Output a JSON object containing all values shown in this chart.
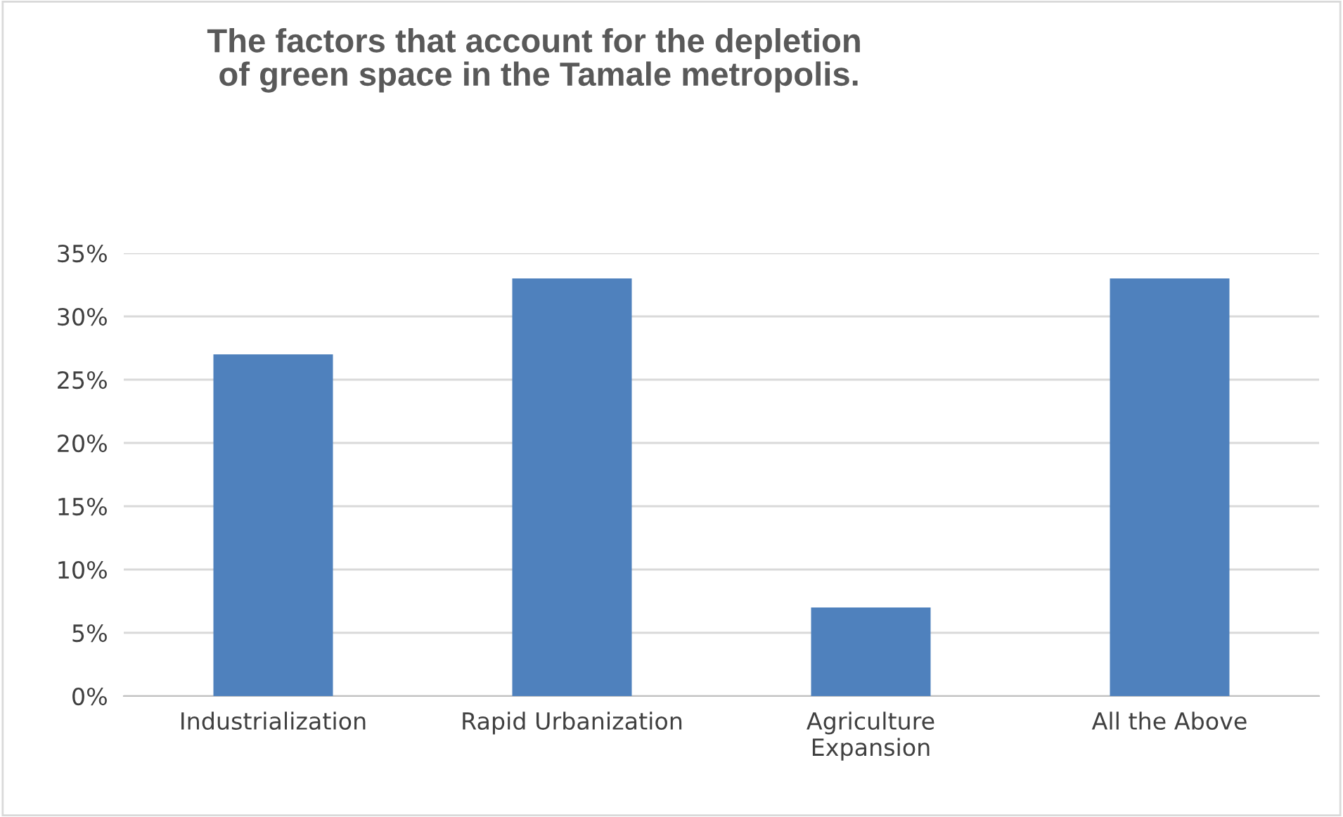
{
  "chart_data": {
    "type": "bar",
    "title": "The factors that account for the depletion\n of green space in the Tamale metropolis.",
    "categories": [
      "Industrialization",
      "Rapid Urbanization",
      "Agriculture\nExpansion",
      "All the Above"
    ],
    "values": [
      27,
      33,
      7,
      33
    ],
    "color": "#4f81bd",
    "ylim": [
      0,
      35
    ],
    "yticks": [
      {
        "value": 0,
        "label": "0%"
      },
      {
        "value": 5,
        "label": "5%"
      },
      {
        "value": 10,
        "label": "10%"
      },
      {
        "value": 15,
        "label": "15%"
      },
      {
        "value": 20,
        "label": "20%"
      },
      {
        "value": 25,
        "label": "25%"
      },
      {
        "value": 30,
        "label": "30%"
      },
      {
        "value": 35,
        "label": "35%"
      }
    ],
    "grid": "y"
  }
}
